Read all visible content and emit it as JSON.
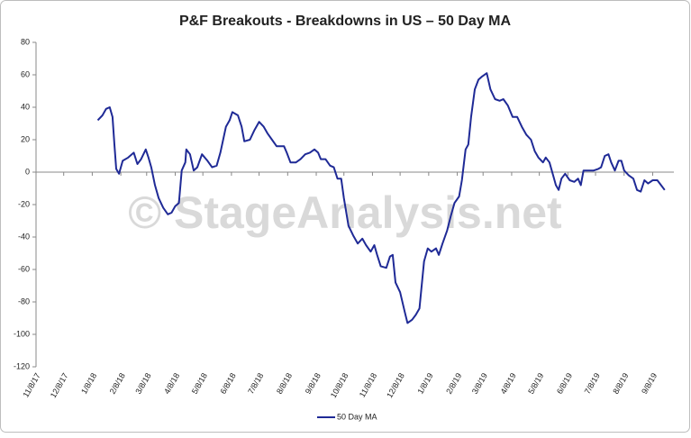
{
  "chart_data": {
    "type": "line",
    "title": "P&F Breakouts - Breakdowns in US – 50 Day MA",
    "watermark": "© StageAnalysis.net",
    "x": [
      "1/14/18",
      "1/19/18",
      "1/23/18",
      "1/27/18",
      "1/30/18",
      "2/1/18",
      "2/3/18",
      "2/6/18",
      "2/10/18",
      "2/16/18",
      "2/22/18",
      "2/26/18",
      "3/2/18",
      "3/7/18",
      "3/10/18",
      "3/13/18",
      "3/17/18",
      "3/21/18",
      "3/26/18",
      "3/31/18",
      "4/4/18",
      "4/8/18",
      "4/12/18",
      "4/15/18",
      "4/19/18",
      "4/20/18",
      "4/24/18",
      "4/28/18",
      "5/2/18",
      "5/7/18",
      "5/13/18",
      "5/18/18",
      "5/23/18",
      "5/27/18",
      "6/2/18",
      "6/6/18",
      "6/9/18",
      "6/15/18",
      "6/19/18",
      "6/22/18",
      "6/28/18",
      "7/3/18",
      "7/8/18",
      "7/13/18",
      "7/17/18",
      "7/22/18",
      "7/27/18",
      "8/4/18",
      "8/7/18",
      "8/11/18",
      "8/17/18",
      "8/22/18",
      "8/27/18",
      "9/1/18",
      "9/6/18",
      "9/10/18",
      "9/13/18",
      "9/18/18",
      "9/23/18",
      "9/27/18",
      "10/1/18",
      "10/5/18",
      "10/8/18",
      "10/13/18",
      "10/18/18",
      "10/23/18",
      "10/28/18",
      "11/1/18",
      "11/6/18",
      "11/10/18",
      "11/13/18",
      "11/17/18",
      "11/23/18",
      "11/27/18",
      "11/30/18",
      "12/3/18",
      "12/8/18",
      "12/13/18",
      "12/16/18",
      "12/21/18",
      "12/25/18",
      "12/29/18",
      "12/31/18",
      "1/3/19",
      "1/7/19",
      "1/11/19",
      "1/16/19",
      "1/19/19",
      "1/23/19",
      "1/28/19",
      "2/1/19",
      "2/5/19",
      "2/10/19",
      "2/13/19",
      "2/17/19",
      "2/20/19",
      "2/23/19",
      "2/27/19",
      "3/3/19",
      "3/7/19",
      "3/12/19",
      "3/16/19",
      "3/21/19",
      "3/26/19",
      "3/30/19",
      "4/4/19",
      "4/9/19",
      "4/14/19",
      "4/19/19",
      "4/24/19",
      "4/29/19",
      "5/3/19",
      "5/7/19",
      "5/12/19",
      "5/15/19",
      "5/19/19",
      "5/23/19",
      "5/26/19",
      "5/29/19",
      "6/1/19",
      "6/5/19",
      "6/10/19",
      "6/15/19",
      "6/19/19",
      "6/22/19",
      "6/25/19",
      "6/30/19",
      "7/6/19",
      "7/11/19",
      "7/14/19",
      "7/18/19",
      "7/22/19",
      "7/25/19",
      "7/29/19",
      "8/2/19",
      "8/5/19",
      "8/8/19",
      "8/13/19",
      "8/18/19",
      "8/22/19",
      "8/26/19",
      "8/30/19",
      "9/3/19",
      "9/8/19",
      "9/13/19",
      "9/17/19",
      "9/21/19"
    ],
    "series": [
      {
        "name": "50 Day MA",
        "color": "#1f2a96",
        "values": [
          32,
          35,
          39,
          40,
          34,
          17,
          2,
          -1,
          7,
          9,
          12,
          5,
          8,
          14,
          9,
          3,
          -8,
          -16,
          -22,
          -26,
          -25,
          -21,
          -19,
          1,
          6,
          14,
          11,
          1,
          3,
          11,
          7,
          3,
          4,
          12,
          28,
          32,
          37,
          35,
          28,
          19,
          20,
          26,
          31,
          28,
          24,
          20,
          16,
          16,
          12,
          6,
          6,
          8,
          11,
          12,
          14,
          12,
          8,
          8,
          4,
          3,
          -4,
          -4,
          -16,
          -33,
          -39,
          -44,
          -41,
          -45,
          -49,
          -45,
          -51,
          -58,
          -59,
          -52,
          -51,
          -68,
          -74,
          -86,
          -93,
          -91,
          -88,
          -84,
          -72,
          -55,
          -47,
          -49,
          -47,
          -51,
          -44,
          -36,
          -27,
          -19,
          -15,
          -5,
          14,
          17,
          34,
          51,
          57,
          59,
          61,
          51,
          45,
          44,
          45,
          41,
          34,
          34,
          28,
          23,
          20,
          13,
          9,
          6,
          9,
          6,
          -2,
          -8,
          -11,
          -4,
          -1,
          -5,
          -6,
          -4,
          -8,
          1,
          1,
          1,
          2,
          3,
          10,
          11,
          6,
          1,
          7,
          7,
          1,
          -2,
          -4,
          -11,
          -12,
          -5,
          -7,
          -5,
          -5,
          -8,
          -11
        ]
      }
    ],
    "xlim": [
      "11/8/17",
      "10/1/19"
    ],
    "xticks": [
      "11/8/17",
      "12/8/17",
      "1/8/18",
      "2/8/18",
      "3/8/18",
      "4/8/18",
      "5/8/18",
      "6/8/18",
      "7/8/18",
      "8/8/18",
      "9/8/18",
      "10/8/18",
      "11/8/18",
      "12/8/18",
      "1/8/19",
      "2/8/19",
      "3/8/19",
      "4/8/19",
      "5/8/19",
      "6/8/19",
      "7/8/19",
      "8/8/19",
      "9/8/19"
    ],
    "ylim": [
      -120,
      80
    ],
    "yticks": [
      -120,
      -100,
      -80,
      -60,
      -40,
      -20,
      0,
      20,
      40,
      60,
      80
    ],
    "legend": "bottom"
  }
}
